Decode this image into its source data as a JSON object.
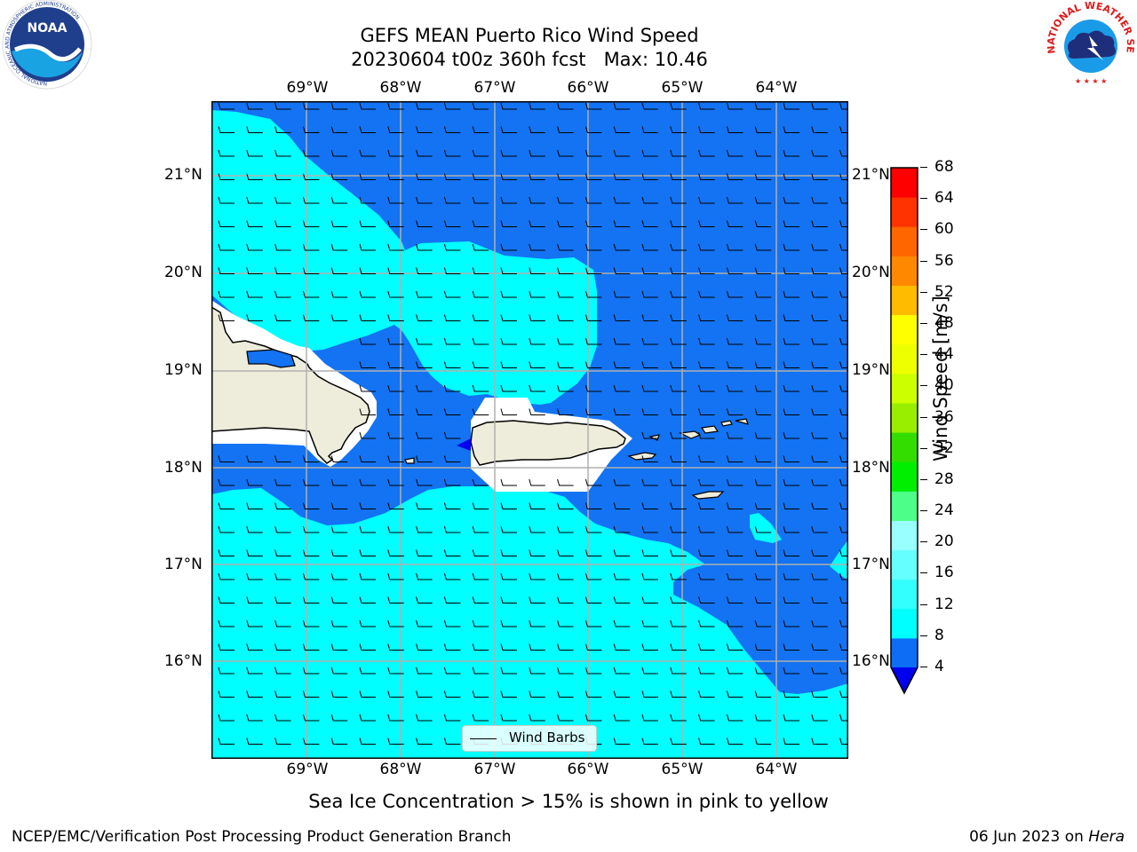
{
  "title_line1": "GEFS MEAN Puerto Rico Wind Speed",
  "title_line2": "20230604 t00z 360h fcst   Max: 10.46",
  "lon_labels": [
    "69°W",
    "68°W",
    "67°W",
    "66°W",
    "65°W",
    "64°W"
  ],
  "lat_labels": [
    "21°N",
    "20°N",
    "19°N",
    "18°N",
    "17°N",
    "16°N"
  ],
  "legend_label": "Wind Barbs",
  "colorbar": {
    "label": "Wind Speed [m/s]",
    "ticks": [
      "68",
      "64",
      "60",
      "56",
      "52",
      "48",
      "44",
      "40",
      "36",
      "32",
      "28",
      "24",
      "20",
      "16",
      "12",
      "8",
      "4"
    ],
    "colors_bottom_to_top": [
      "#0d6ef5",
      "#00ffff",
      "#33ffff",
      "#66ffff",
      "#99ffff",
      "#4dff88",
      "#00ee00",
      "#33dd00",
      "#99ee00",
      "#ccff00",
      "#eeff00",
      "#ffff00",
      "#ffbb00",
      "#ff8800",
      "#ff6600",
      "#ff3300",
      "#ff0000"
    ],
    "under_color": "#0000ee"
  },
  "colors": {
    "wind_4_8": "#1373f3",
    "wind_8_12": "#00ffff",
    "land": "#eeecda",
    "masked": "#ffffff",
    "grid": "#b0b0b0"
  },
  "subtitle": "Sea Ice Concentration > 15% is shown in pink to yellow",
  "footer_left": "NCEP/EMC/Verification Post Processing Product Generation Branch",
  "footer_date": "06 Jun 2023 on ",
  "footer_machine": "Hera",
  "logos": {
    "noaa_text": "NOAA",
    "noaa_ring": "NATIONAL OCEANIC AND ATMOSPHERIC ADMINISTRATION",
    "nws_ring": "NATIONAL WEATHER SERVICE"
  }
}
